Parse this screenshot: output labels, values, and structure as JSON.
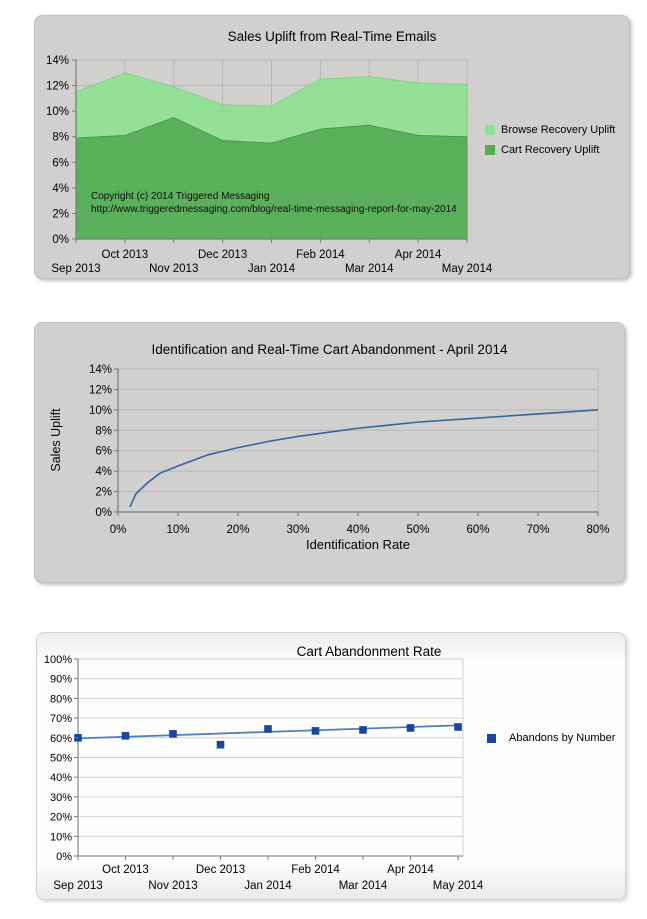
{
  "charts": [
    {
      "title": "Sales Uplift from Real-Time Emails",
      "type": "stacked-area",
      "months": [
        "Sep 2013",
        "Oct 2013",
        "Nov 2013",
        "Dec 2013",
        "Jan 2014",
        "Feb 2014",
        "Mar 2014",
        "Apr 2014",
        "May 2014"
      ],
      "y_tick_labels": [
        "0%",
        "2%",
        "4%",
        "6%",
        "8%",
        "10%",
        "12%",
        "14%"
      ],
      "ylim": [
        0,
        14
      ],
      "series": [
        {
          "name": "Cart Recovery Uplift",
          "color": "#54ae55",
          "values": [
            7.9,
            8.1,
            9.5,
            7.7,
            7.5,
            8.6,
            8.9,
            8.1,
            8.0
          ]
        },
        {
          "name": "Browse Recovery Uplift",
          "color": "#8ee191",
          "values": [
            3.6,
            4.9,
            2.4,
            2.8,
            2.9,
            3.9,
            3.8,
            4.1,
            4.1
          ]
        }
      ],
      "totals": [
        11.5,
        13.0,
        11.9,
        10.5,
        10.4,
        12.5,
        12.7,
        12.2,
        12.1
      ],
      "legend": [
        {
          "label": "Browse Recovery Uplift",
          "color": "#8ee191"
        },
        {
          "label": "Cart Recovery Uplift",
          "color": "#54ae55"
        }
      ],
      "copyright_line1": "Copyright (c) 2014 Triggered Messaging",
      "copyright_line2": "http://www.triggeredmessaging.com/blog/real-time-messaging-report-for-may-2014"
    },
    {
      "title": "Identification and Real-Time Cart Abandonment - April 2014",
      "type": "line",
      "xlabel": "Identification Rate",
      "ylabel": "Sales Uplift",
      "x_tick_labels": [
        "0%",
        "10%",
        "20%",
        "30%",
        "40%",
        "50%",
        "60%",
        "70%",
        "80%"
      ],
      "y_tick_labels": [
        "0%",
        "2%",
        "4%",
        "6%",
        "8%",
        "10%",
        "12%",
        "14%"
      ],
      "xlim": [
        0,
        80
      ],
      "ylim": [
        0,
        14
      ],
      "line_color": "#36649f",
      "points": {
        "x": [
          2,
          3,
          5,
          7,
          10,
          15,
          20,
          25,
          30,
          35,
          40,
          45,
          50,
          55,
          60,
          65,
          70,
          75,
          80
        ],
        "y": [
          0.5,
          1.8,
          2.9,
          3.8,
          4.5,
          5.6,
          6.3,
          6.9,
          7.4,
          7.8,
          8.2,
          8.5,
          8.8,
          9.0,
          9.2,
          9.4,
          9.6,
          9.8,
          10.0
        ]
      }
    },
    {
      "title": "Cart Abandonment Rate",
      "type": "scatter-trend",
      "months": [
        "Sep 2013",
        "Oct 2013",
        "Nov 2013",
        "Dec 2013",
        "Jan 2014",
        "Feb 2014",
        "Mar 2014",
        "Apr 2014",
        "May 2014"
      ],
      "y_tick_labels": [
        "0%",
        "10%",
        "20%",
        "30%",
        "40%",
        "50%",
        "60%",
        "70%",
        "80%",
        "90%",
        "100%"
      ],
      "ylim": [
        0,
        100
      ],
      "series": [
        {
          "name": "Abandons by Number",
          "color": "#17479e",
          "values": [
            60,
            61,
            62,
            56.5,
            64.5,
            63.5,
            64,
            65,
            65.5
          ]
        }
      ],
      "trend": {
        "start": 59.7,
        "end": 66.3,
        "color": "#4e81bb"
      },
      "legend": [
        {
          "label": "Abandons by Number",
          "color": "#17479e"
        }
      ]
    }
  ]
}
